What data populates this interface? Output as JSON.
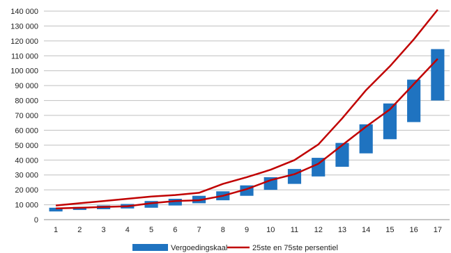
{
  "chart_data": {
    "type": "bar",
    "title": "",
    "xlabel": "",
    "ylabel": "",
    "categories": [
      "1",
      "2",
      "3",
      "4",
      "5",
      "6",
      "7",
      "8",
      "9",
      "10",
      "11",
      "12",
      "13",
      "14",
      "15",
      "16",
      "17"
    ],
    "ylim": [
      0,
      140000
    ],
    "y_ticks": [
      "0",
      "10 000",
      "20 000",
      "30 000",
      "40 000",
      "50 000",
      "60 000",
      "70 000",
      "80 000",
      "90 000",
      "100 000",
      "110 000",
      "120 000",
      "130 000",
      "140 000"
    ],
    "grid": true,
    "legend_position": "bottom",
    "floating_bars": {
      "name": "Vergoedingskaal",
      "color": "#1F73C0",
      "low": [
        5500,
        6500,
        7000,
        7500,
        8000,
        9500,
        11000,
        13000,
        16000,
        20000,
        24000,
        29000,
        35500,
        44500,
        54000,
        65500,
        80000
      ],
      "high": [
        8000,
        8500,
        9500,
        10500,
        12500,
        14000,
        16000,
        19000,
        23000,
        28500,
        34000,
        41500,
        51500,
        64000,
        78000,
        94000,
        114500
      ]
    },
    "lines": {
      "name": "25ste en 75ste persentiel",
      "color": "#C00000",
      "p25": [
        7500,
        8000,
        8500,
        9000,
        11000,
        12500,
        13000,
        16000,
        20500,
        26500,
        30500,
        37500,
        50000,
        62500,
        74000,
        91000,
        108000
      ],
      "p75": [
        9500,
        11000,
        12500,
        14000,
        15500,
        16500,
        18000,
        24000,
        28500,
        33500,
        40000,
        50500,
        68000,
        87000,
        103000,
        121000,
        141000
      ]
    }
  }
}
